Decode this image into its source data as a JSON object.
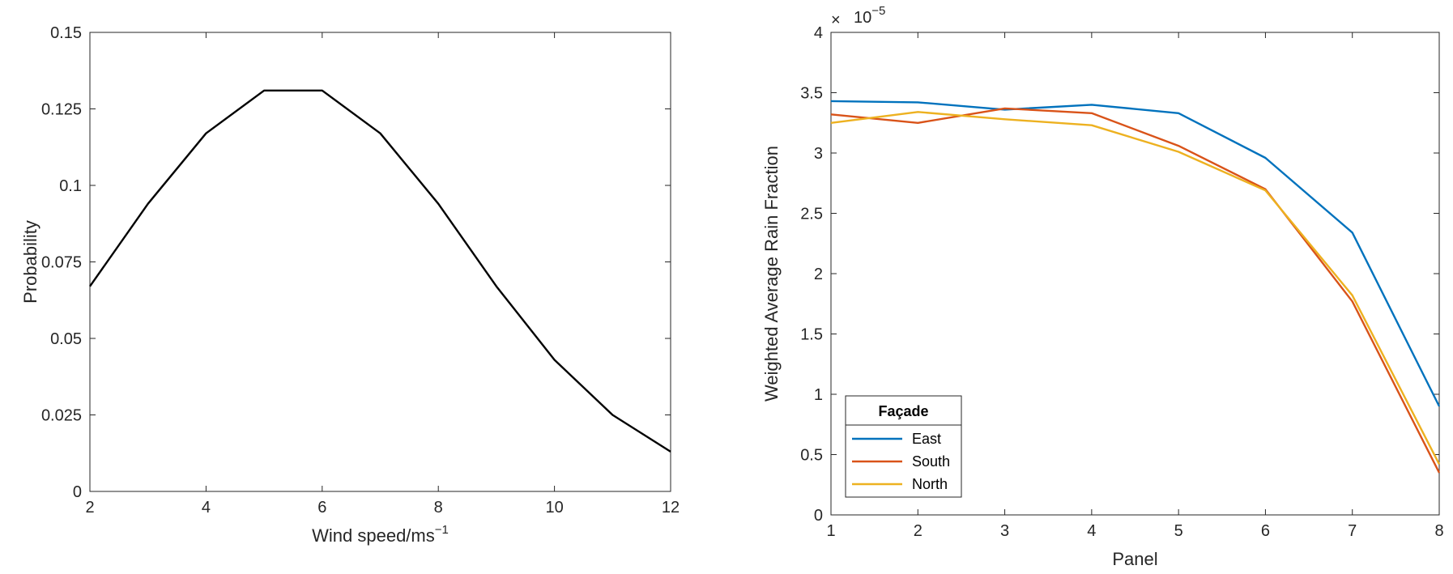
{
  "chart_data": [
    {
      "type": "line",
      "title": "",
      "xlabel": "Wind speed/ms",
      "xlabel_sup": "−1",
      "ylabel": "Probability",
      "xlim": [
        2,
        12
      ],
      "ylim": [
        0,
        0.15
      ],
      "xticks": [
        2,
        4,
        6,
        8,
        10,
        12
      ],
      "xtick_labels": [
        "2",
        "4",
        "6",
        "8",
        "10",
        "12"
      ],
      "yticks": [
        0,
        0.025,
        0.05,
        0.075,
        0.1,
        0.125,
        0.15
      ],
      "ytick_labels": [
        "0",
        "0.025",
        "0.05",
        "0.075",
        "0.1",
        "0.125",
        "0.15"
      ],
      "grid": false,
      "series": [
        {
          "name": "Probability",
          "color": "#000000",
          "x": [
            2,
            3,
            4,
            5,
            6,
            7,
            8,
            9,
            10,
            11,
            12
          ],
          "y": [
            0.067,
            0.094,
            0.117,
            0.131,
            0.131,
            0.117,
            0.094,
            0.067,
            0.043,
            0.025,
            0.013
          ]
        }
      ]
    },
    {
      "type": "line",
      "title": "",
      "xlabel": "Panel",
      "ylabel": "Weighted Average Rain Fraction",
      "xlim": [
        1,
        8
      ],
      "ylim": [
        0,
        4
      ],
      "exponent_label": "10",
      "exponent_sup": "−5",
      "exponent_multiplier": "×",
      "xticks": [
        1,
        2,
        3,
        4,
        5,
        6,
        7,
        8
      ],
      "xtick_labels": [
        "1",
        "2",
        "3",
        "4",
        "5",
        "6",
        "7",
        "8"
      ],
      "yticks": [
        0,
        0.5,
        1,
        1.5,
        2,
        2.5,
        3,
        3.5,
        4
      ],
      "ytick_labels": [
        "0",
        "0.5",
        "1",
        "1.5",
        "2",
        "2.5",
        "3",
        "3.5",
        "4"
      ],
      "grid": false,
      "legend": {
        "title": "Façade",
        "placement": "bottom-left"
      },
      "series": [
        {
          "name": "East",
          "color": "#0072BD",
          "x": [
            1,
            2,
            3,
            4,
            5,
            6,
            7,
            8
          ],
          "y": [
            3.43,
            3.42,
            3.36,
            3.4,
            3.33,
            2.96,
            2.34,
            0.9
          ]
        },
        {
          "name": "South",
          "color": "#D95319",
          "x": [
            1,
            2,
            3,
            4,
            5,
            6,
            7,
            8
          ],
          "y": [
            3.32,
            3.25,
            3.37,
            3.33,
            3.06,
            2.7,
            1.77,
            0.35
          ]
        },
        {
          "name": "North",
          "color": "#EDB120",
          "x": [
            1,
            2,
            3,
            4,
            5,
            6,
            7,
            8
          ],
          "y": [
            3.25,
            3.34,
            3.28,
            3.23,
            3.01,
            2.69,
            1.82,
            0.42
          ]
        }
      ]
    }
  ]
}
